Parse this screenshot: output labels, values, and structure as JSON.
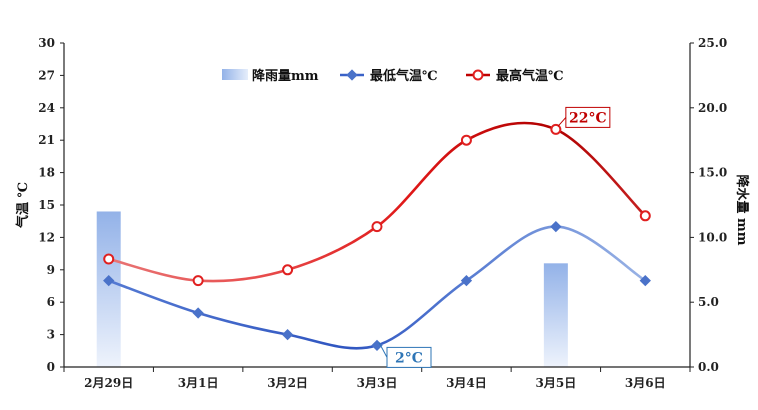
{
  "chart_data": {
    "type": "line",
    "categories": [
      "2月29日",
      "3月1日",
      "3月2日",
      "3月3日",
      "3月4日",
      "3月5日",
      "3月6日"
    ],
    "series": [
      {
        "name": "降雨量mm",
        "type": "bar",
        "axis": "right",
        "values": [
          12.0,
          0,
          0,
          0,
          0,
          8.0,
          0
        ],
        "color": "#8fb0e6"
      },
      {
        "name": "最低气温℃",
        "type": "line",
        "axis": "left",
        "values": [
          8,
          5,
          3,
          2,
          8,
          13,
          8
        ],
        "color": "#3a62c8"
      },
      {
        "name": "最高气温℃",
        "type": "line",
        "axis": "left",
        "values": [
          10,
          8,
          9,
          13,
          21,
          22,
          14
        ],
        "color": "#c00000"
      }
    ],
    "ylabel_left": "气温 ℃",
    "ylabel_right": "降水量 mm",
    "ylim_left": [
      0,
      30
    ],
    "yticks_left": [
      "0",
      "3",
      "6",
      "9",
      "12",
      "15",
      "18",
      "21",
      "24",
      "27",
      "30"
    ],
    "ylim_right": [
      0,
      25
    ],
    "yticks_right": [
      "0.0",
      "5.0",
      "10.0",
      "15.0",
      "20.0",
      "25.0"
    ],
    "legend_position": "top-center",
    "grid": false,
    "annotations": [
      {
        "text": "22°C",
        "series": "最高气温℃",
        "index": 5,
        "color": "#c00000"
      },
      {
        "text": "2°C",
        "series": "最低气温℃",
        "index": 3,
        "color": "#2e75b6"
      }
    ]
  }
}
